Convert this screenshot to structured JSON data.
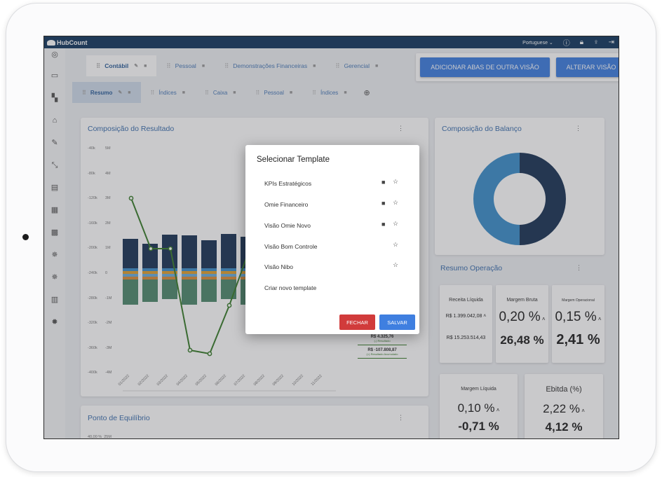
{
  "topbar": {
    "logo": "HubCount",
    "language": "Portuguese",
    "icons": [
      "help-icon",
      "lock-icon",
      "bulb-icon",
      "logout-icon"
    ]
  },
  "sidebar": {
    "icons": [
      "compass-icon",
      "folder-icon",
      "dashboard-icon",
      "home-icon",
      "edit-icon",
      "compress-icon",
      "report-icon",
      "table-icon",
      "grid-icon",
      "bug-icon",
      "bug-icon",
      "book-icon",
      "settings-icon"
    ]
  },
  "tabs_top": [
    {
      "label": "Contábil",
      "active": true
    },
    {
      "label": "Pessoal",
      "active": false
    },
    {
      "label": "Demonstrações Financeiras",
      "active": false
    },
    {
      "label": "Gerencial",
      "active": false
    }
  ],
  "actions": {
    "add_tabs": "ADICIONAR ABAS DE OUTRA VISÃO",
    "change_view": "ALTERAR VISÃO"
  },
  "tabs_sub": [
    {
      "label": "Resumo",
      "active": true
    },
    {
      "label": "Índices",
      "active": false
    },
    {
      "label": "Caixa",
      "active": false
    },
    {
      "label": "Pessoal",
      "active": false
    },
    {
      "label": "Índices",
      "active": false
    }
  ],
  "composicao_resultado": {
    "title": "Composição do Resultado",
    "left_axis": [
      "-40k",
      "-80k",
      "-120k",
      "-160k",
      "-200k",
      "-240k",
      "-280k",
      "-320k",
      "-360k",
      "-400k"
    ],
    "right_axis": [
      "5M",
      "4M",
      "3M",
      "2M",
      "1M",
      "0",
      "-1M",
      "-2M",
      "-3M",
      "-4M"
    ],
    "months": [
      "01/2022",
      "02/2022",
      "03/2022",
      "04/2022",
      "05/2022",
      "06/2022",
      "07/2022",
      "08/2022",
      "09/2022",
      "10/2022",
      "11/2022"
    ],
    "legend_value1": "R$ 4.325,76",
    "legend_label1": "(-) Resultado",
    "legend_value2": "R$ -107.808,87",
    "legend_label2": "(=) Resultado Acumulado"
  },
  "composicao_balanco": {
    "title": "Composição do Balanço",
    "colors": [
      "#1c3557",
      "#3e8fcb"
    ]
  },
  "resumo_operacao": {
    "title": "Resumo Operação",
    "receita_label": "Receita Líquida",
    "receita_v1": "R$ 1.399.042,08",
    "receita_v2": "R$ 15.253.514,43",
    "margem_bruta_label": "Margem Bruta",
    "margem_bruta_v1": "0,20 %",
    "margem_bruta_v2": "26,48 %",
    "margem_op_label": "Margem Operacional",
    "margem_op_v1": "0,15 %",
    "margem_op_v2": "2,41 %",
    "margem_liq_label": "Margem Líquida",
    "margem_liq_v1": "0,10 %",
    "margem_liq_v2": "-0,71 %",
    "ebitda_label": "Ebitda (%)",
    "ebitda_v1": "2,22 %",
    "ebitda_v2": "4,12 %"
  },
  "ponto_equilibrio": {
    "title": "Ponto de Equilíbrio",
    "axis_l": "40,00 %",
    "axis_r": "25M"
  },
  "modal": {
    "title": "Selecionar Template",
    "items": [
      {
        "label": "KPIs Estratégicos",
        "deletable": true
      },
      {
        "label": "Omie Financeiro",
        "deletable": true
      },
      {
        "label": "Visão Omie Novo",
        "deletable": true
      },
      {
        "label": "Visão Bom Controle",
        "deletable": false
      },
      {
        "label": "Visão Nibo",
        "deletable": false
      }
    ],
    "create_new": "Criar novo template",
    "close": "FECHAR",
    "save": "SALVAR"
  }
}
